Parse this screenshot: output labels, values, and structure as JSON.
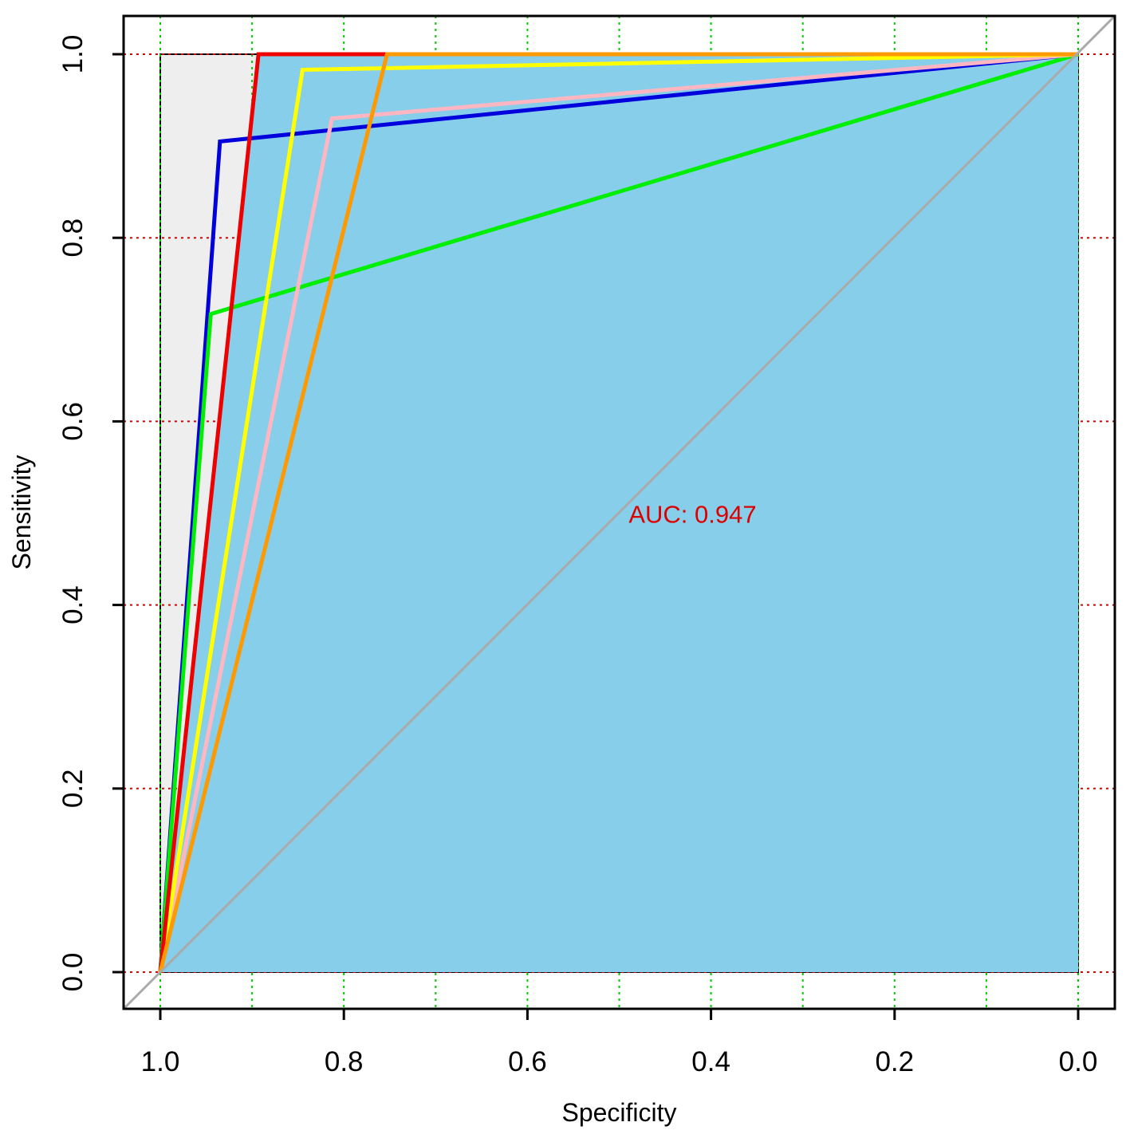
{
  "chart_data": {
    "type": "line",
    "title": "",
    "xlabel": "Specificity",
    "ylabel": "Sensitivity",
    "xlim": [
      1.0,
      0.0
    ],
    "ylim": [
      0.0,
      1.0
    ],
    "x_reversed": true,
    "x_ticks": [
      "1.0",
      "0.8",
      "0.6",
      "0.4",
      "0.2",
      "0.0"
    ],
    "y_ticks": [
      "0.0",
      "0.2",
      "0.4",
      "0.6",
      "0.8",
      "1.0"
    ],
    "grid": {
      "vertical_at_specificity": [
        1.0,
        0.9,
        0.8,
        0.7,
        0.6,
        0.5,
        0.4,
        0.3,
        0.2,
        0.1,
        0.0
      ],
      "vertical_color": "#00cc00",
      "horizontal_at_sensitivity": [
        0.0,
        0.2,
        0.4,
        0.6,
        0.8,
        1.0
      ],
      "horizontal_color": "#dd0000",
      "style": "dotted"
    },
    "auc_polygon_color": "#87ceeb",
    "max_auc_region_color": "#eeeeee",
    "chance_line_color": "#aaaaaa",
    "annotations": [
      {
        "text": "AUC: 0.947",
        "x": 0.5,
        "y": 0.5,
        "color": "#dd0000"
      }
    ],
    "series": [
      {
        "color": "#0000dd",
        "points": [
          [
            1.0,
            0.0
          ],
          [
            0.935,
            0.905
          ],
          [
            0.0,
            1.0
          ]
        ]
      },
      {
        "color": "#00ee00",
        "points": [
          [
            1.0,
            0.0
          ],
          [
            0.945,
            0.717
          ],
          [
            0.0,
            1.0
          ]
        ]
      },
      {
        "color": "#ffb6c1",
        "points": [
          [
            1.0,
            0.0
          ],
          [
            0.813,
            0.93
          ],
          [
            0.0,
            1.0
          ]
        ]
      },
      {
        "color": "#ffff00",
        "points": [
          [
            1.0,
            0.0
          ],
          [
            0.845,
            0.983
          ],
          [
            0.0,
            1.0
          ]
        ]
      },
      {
        "color": "#ee0000",
        "points": [
          [
            1.0,
            0.0
          ],
          [
            0.893,
            1.0
          ],
          [
            0.0,
            1.0
          ]
        ]
      },
      {
        "color": "#ff9900",
        "points": [
          [
            1.0,
            0.0
          ],
          [
            0.753,
            1.0
          ],
          [
            0.0,
            1.0
          ]
        ]
      }
    ]
  }
}
